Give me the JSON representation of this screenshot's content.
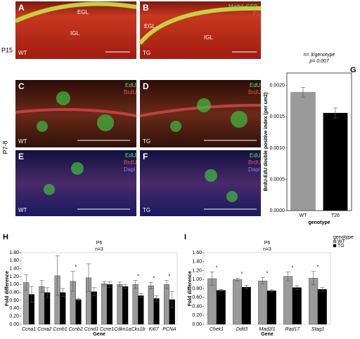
{
  "panels": {
    "row_labels": [
      "P15",
      "P7-8"
    ],
    "A": {
      "letter": "A",
      "labels": [
        "EGL",
        "IGL",
        "WT"
      ]
    },
    "B": {
      "letter": "B",
      "labels": [
        "Math1-GFP",
        "P1",
        "EGL",
        "IGL",
        "TG"
      ]
    },
    "C": {
      "letter": "C",
      "labels": [
        "EdU",
        "BrdU",
        "WT"
      ]
    },
    "D": {
      "letter": "D",
      "labels": [
        "EdU",
        "BrdU",
        "TG"
      ]
    },
    "E": {
      "letter": "E",
      "labels": [
        "EdU",
        "BrdU",
        "Dapi",
        "WT"
      ]
    },
    "F": {
      "letter": "F",
      "labels": [
        "EdU",
        "BrdU",
        "Dapi",
        "TG"
      ]
    },
    "G": {
      "letter": "G"
    },
    "H": {
      "letter": "H"
    },
    "I": {
      "letter": "I"
    }
  },
  "chart_data": [
    {
      "type": "bar",
      "title": "n= 3/genotype",
      "subtitle": "p= 0.007",
      "x_label": "genotype",
      "y_label": "BrdU-EdU double positive index (per um2)",
      "categories": [
        "WT",
        "T26"
      ],
      "series": [
        {
          "color": "#9a9a9a",
          "values": [
            0.00189,
            null
          ],
          "errors": [
            8e-05,
            null
          ]
        },
        {
          "color": "#000000",
          "values": [
            null,
            0.00156
          ],
          "errors": [
            null,
            8e-05
          ]
        }
      ],
      "ylim": [
        0,
        0.0022
      ],
      "yticks": [
        {
          "value": 0,
          "label": "0.0000"
        },
        {
          "value": 0.0005,
          "label": "0.0005"
        },
        {
          "value": 0.001,
          "label": "0.0010"
        },
        {
          "value": 0.0015,
          "label": "0.0015"
        },
        {
          "value": 0.002,
          "label": "0.0020"
        }
      ],
      "grid": false
    },
    {
      "type": "bar",
      "title": "P6",
      "subtitle": "n=3",
      "x_label": "Gene",
      "y_label": "Fold difference",
      "categories": [
        "Ccna1",
        "Ccna2",
        "Ccnb1",
        "Ccnb2",
        "Ccnd1",
        "Ccne1",
        "Cdkn1a",
        "Cks1b",
        "Ki67",
        "PCNA"
      ],
      "series": [
        {
          "color": "#9a9a9a",
          "values": [
            1.05,
            0.95,
            1.22,
            1.08,
            1.17,
            1.02,
            1.0,
            1.0,
            0.97,
            1.0
          ],
          "errors": [
            0.2,
            0.15,
            0.5,
            0.25,
            0.35,
            0.05,
            0.06,
            0.1,
            0.08,
            0.1
          ]
        },
        {
          "color": "#000000",
          "values": [
            0.75,
            0.8,
            0.8,
            0.62,
            0.82,
            1.0,
            0.95,
            0.72,
            0.65,
            0.62
          ],
          "errors": [
            0.2,
            0.12,
            0.1,
            0.03,
            0.1,
            0.07,
            0.05,
            0.05,
            0.07,
            0.2
          ]
        }
      ],
      "annotations": [
        {
          "text": "*",
          "category": "Ccnb2"
        },
        {
          "text": "*",
          "category": "Cks1b"
        },
        {
          "text": "*",
          "category": "Ki67"
        },
        {
          "text": "*",
          "category": "PCNA"
        }
      ],
      "ylim": [
        0,
        1.8
      ],
      "yticks": [
        {
          "value": 0,
          "label": "0.00"
        },
        {
          "value": 0.2,
          "label": "0.20"
        },
        {
          "value": 0.4,
          "label": "0.40"
        },
        {
          "value": 0.6,
          "label": "0.60"
        },
        {
          "value": 0.8,
          "label": "0.80"
        },
        {
          "value": 1,
          "label": "1.00"
        },
        {
          "value": 1.2,
          "label": "1.20"
        },
        {
          "value": 1.4,
          "label": "1.40"
        },
        {
          "value": 1.6,
          "label": "1.60"
        },
        {
          "value": 1.8,
          "label": "1.80"
        }
      ],
      "grid": false
    },
    {
      "type": "bar",
      "title": "P6",
      "subtitle": "n=3",
      "x_label": "Gene",
      "y_label": "Fold difference",
      "legend_title": "genotype",
      "legend": "right",
      "categories": [
        "Chek1",
        "Ddit3",
        "Mad2l1",
        "Rad17",
        "Stag1"
      ],
      "series": [
        {
          "name": "WT",
          "color": "#9a9a9a",
          "values": [
            1.02,
            1.0,
            0.97,
            1.07,
            1.03
          ],
          "errors": [
            0.15,
            0.03,
            0.07,
            0.1,
            0.15
          ]
        },
        {
          "name": "TG",
          "color": "#000000",
          "values": [
            0.76,
            0.83,
            0.75,
            0.82,
            0.78
          ],
          "errors": [
            0.02,
            0.04,
            0.02,
            0.04,
            0.04
          ]
        }
      ],
      "annotations": [
        {
          "text": "*",
          "category": "Chek1"
        },
        {
          "text": "*",
          "category": "Ddit3"
        },
        {
          "text": "*",
          "category": "Mad2l1"
        },
        {
          "text": "*",
          "category": "Rad17"
        },
        {
          "text": "*",
          "category": "Stag1"
        }
      ],
      "ylim": [
        0,
        1.6
      ],
      "yticks": [
        {
          "value": 0,
          "label": "0.00"
        },
        {
          "value": 0.2,
          "label": "0.20"
        },
        {
          "value": 0.4,
          "label": "0.40"
        },
        {
          "value": 0.6,
          "label": "0.60"
        },
        {
          "value": 0.8,
          "label": "0.80"
        },
        {
          "value": 1,
          "label": "1.00"
        },
        {
          "value": 1.2,
          "label": "1.20"
        },
        {
          "value": 1.4,
          "label": "1.40"
        },
        {
          "value": 1.6,
          "label": "1.60"
        }
      ],
      "grid": false
    }
  ]
}
